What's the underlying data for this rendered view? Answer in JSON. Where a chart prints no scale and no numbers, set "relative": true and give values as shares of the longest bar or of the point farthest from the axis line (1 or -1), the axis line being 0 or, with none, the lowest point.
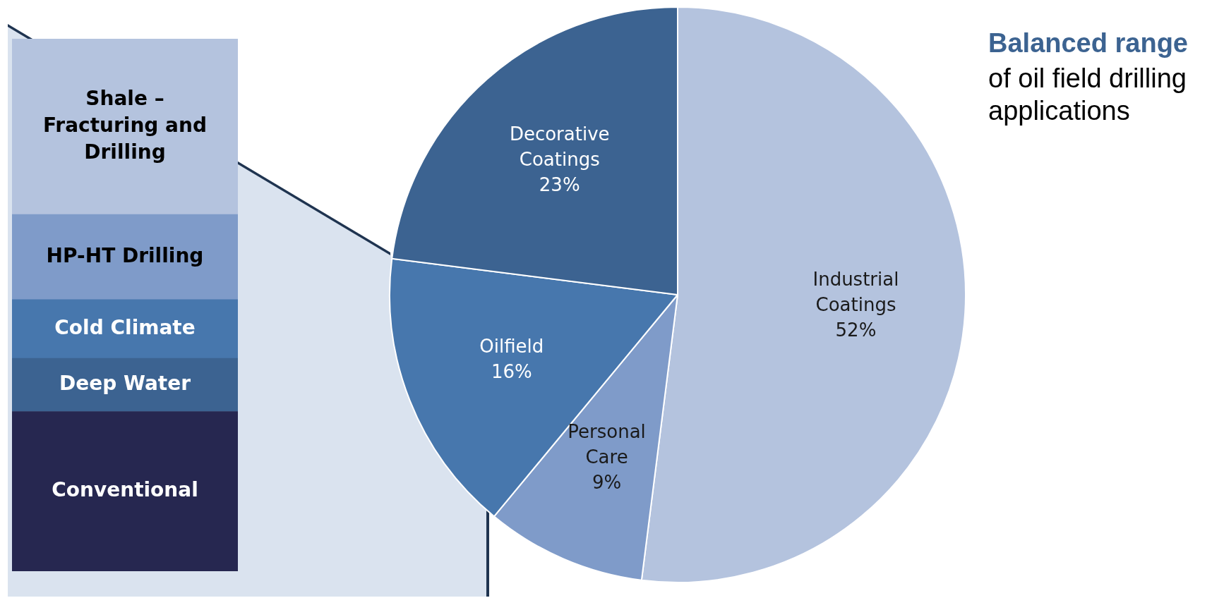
{
  "chart_data": [
    {
      "type": "pie",
      "title": "Balanced range",
      "subtitle": "of oil field drilling applications",
      "categories": [
        "Industrial Coatings",
        "Personal Care",
        "Oilfield",
        "Decorative Coatings"
      ],
      "values": [
        52,
        9,
        16,
        23
      ],
      "colors": [
        "#b4c3de",
        "#7f9bc9",
        "#4777ad",
        "#3c6391"
      ],
      "value_labels": [
        "52%",
        "9%",
        "16%",
        "23%"
      ]
    },
    {
      "type": "bar",
      "relative": true,
      "stacked": true,
      "categories": [
        null
      ],
      "series": [
        {
          "name": "Conventional",
          "color": "#262750",
          "values": [
            0.3
          ]
        },
        {
          "name": "Deep Water",
          "color": "#3c6391",
          "values": [
            0.1
          ]
        },
        {
          "name": "Cold Climate",
          "color": "#4777ad",
          "values": [
            0.11
          ]
        },
        {
          "name": "HP-HT Drilling",
          "color": "#7f9bc9",
          "values": [
            0.16
          ]
        },
        {
          "name": "Shale – Fracturing and Drilling",
          "color": "#b4c3de",
          "values": [
            0.33
          ]
        }
      ]
    }
  ]
}
